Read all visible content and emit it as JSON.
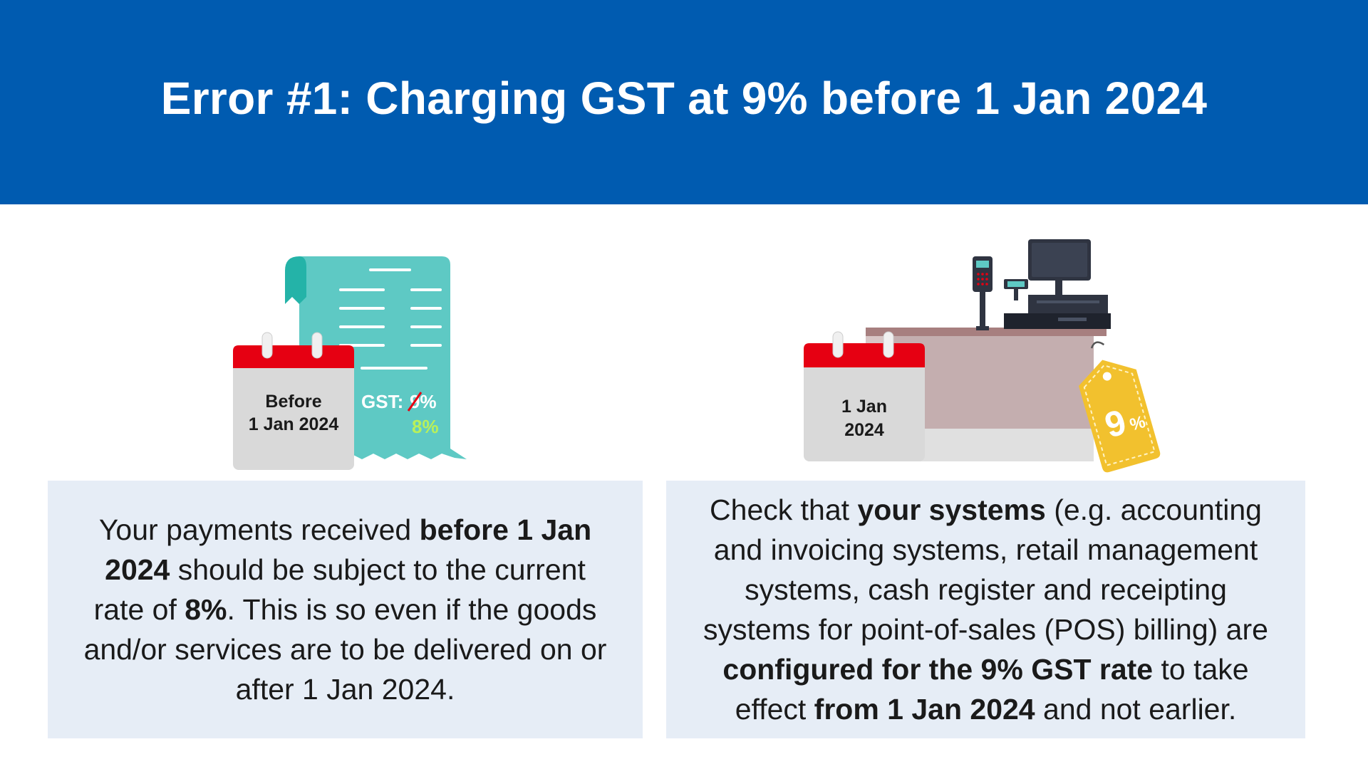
{
  "header": {
    "title": "Error #1: Charging GST at 9% before 1 Jan 2024"
  },
  "left_illustration": {
    "calendar_line1": "Before",
    "calendar_line2": "1 Jan 2024",
    "receipt_gst_label": "GST:",
    "receipt_old_rate": "9%",
    "receipt_new_rate": "8%"
  },
  "right_illustration": {
    "calendar_line1": "1 Jan",
    "calendar_line2": "2024",
    "tag_number": "9",
    "tag_percent": "%"
  },
  "left_card": {
    "t1": "Your payments received ",
    "b1": "before 1 Jan 2024",
    "t2": " should be subject to the current rate of ",
    "b2": "8%",
    "t3": ". This is so even if the goods and/or services are to be delivered on or after 1 Jan 2024."
  },
  "right_card": {
    "t1": "Check that ",
    "b1": "your systems",
    "t2": " (e.g. accounting and invoicing systems, retail management systems, cash register and receipting systems for point-of-sales (POS) billing) are ",
    "b2": "configured for the 9% GST rate",
    "t3": " to take effect ",
    "b3": "from 1 Jan 2024",
    "t4": " and not earlier."
  },
  "colors": {
    "header_blue": "#005bb0",
    "card_bg": "#e6edf6",
    "calendar_red": "#e60012",
    "calendar_grey": "#d9d9d9",
    "receipt_teal": "#5ec9c4",
    "new_rate_green": "#b8f05a",
    "tag_yellow": "#f2c12e"
  }
}
